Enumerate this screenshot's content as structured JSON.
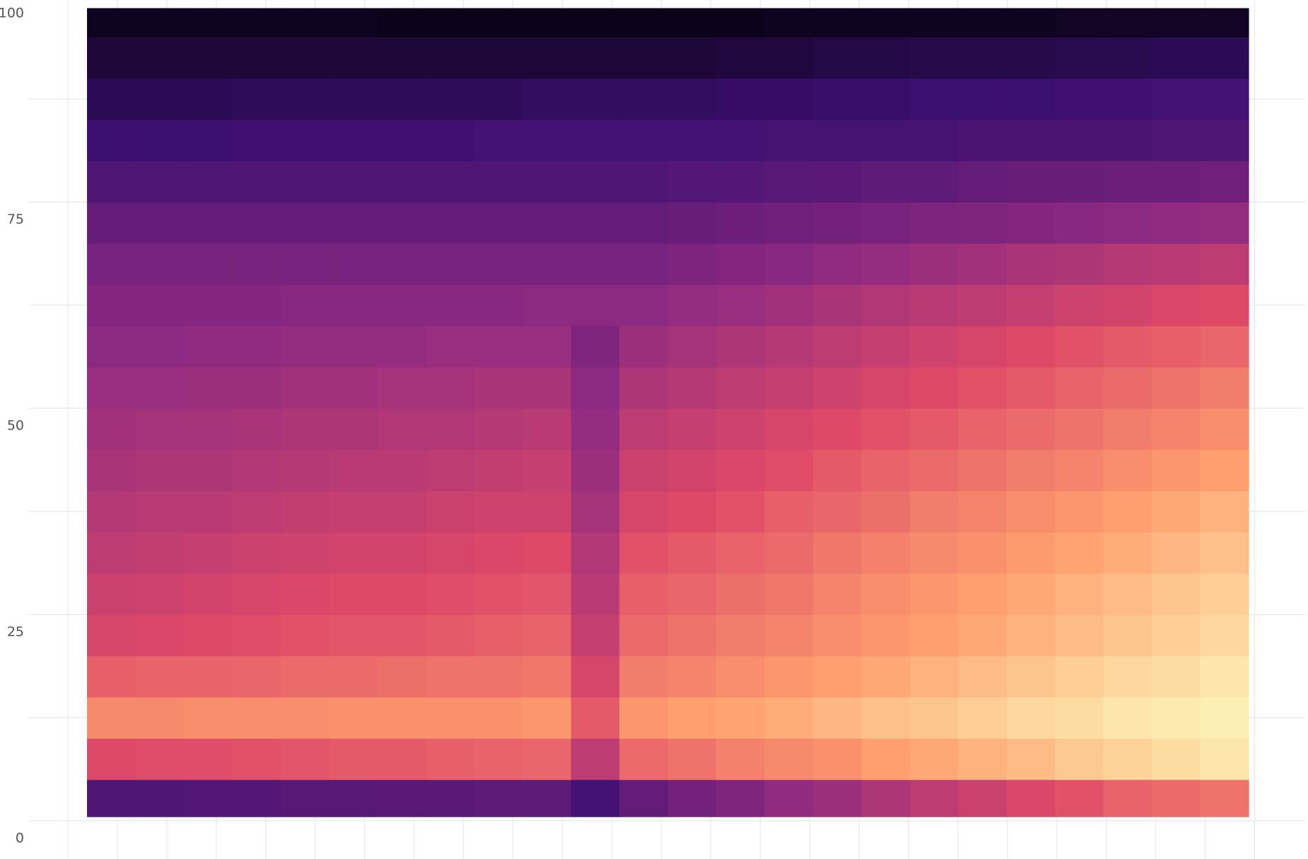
{
  "chart_data": {
    "type": "heatmap",
    "categories": [
      null,
      null,
      null,
      null,
      null,
      null,
      null,
      null,
      null,
      null,
      null,
      null,
      null,
      null,
      null,
      null,
      null,
      null,
      null,
      null,
      null,
      null,
      null,
      null
    ],
    "ybins": [
      0.5,
      5,
      10,
      15,
      20,
      25,
      30,
      35,
      40,
      45,
      50,
      55,
      60,
      65,
      70,
      75,
      80,
      85,
      90,
      95,
      98.5
    ],
    "ylim": [
      0,
      100
    ],
    "yticks": [
      0,
      25,
      50,
      75,
      100
    ],
    "zlim": [
      0,
      100
    ],
    "colorscale": [
      "#000004",
      "#3b0f70",
      "#8c2981",
      "#de4968",
      "#fe9f6d",
      "#fcfdbf"
    ],
    "grid": true,
    "values": [
      [
        25,
        25,
        26,
        26,
        27,
        27,
        28,
        28,
        29,
        29,
        22,
        30,
        34,
        37,
        41,
        44,
        48,
        52,
        55,
        59,
        62,
        66,
        68,
        70
      ],
      [
        60,
        61,
        61,
        62,
        63,
        64,
        64,
        65,
        66,
        67,
        52,
        68,
        70,
        73,
        75,
        77,
        80,
        82,
        84,
        86,
        89,
        91,
        93,
        95
      ],
      [
        75,
        75,
        76,
        76,
        76,
        77,
        77,
        77,
        77,
        78,
        64,
        78,
        80,
        81,
        83,
        85,
        87,
        88,
        90,
        92,
        93,
        95,
        96,
        97
      ],
      [
        65,
        66,
        66,
        67,
        68,
        68,
        69,
        70,
        70,
        71,
        58,
        72,
        74,
        76,
        78,
        80,
        82,
        84,
        86,
        88,
        90,
        92,
        93,
        95
      ],
      [
        58,
        59,
        60,
        61,
        62,
        63,
        63,
        64,
        65,
        66,
        54,
        68,
        70,
        72,
        74,
        76,
        78,
        80,
        82,
        84,
        86,
        88,
        90,
        92
      ],
      [
        55,
        56,
        57,
        58,
        59,
        60,
        60,
        61,
        62,
        63,
        51,
        65,
        67,
        69,
        71,
        74,
        76,
        78,
        80,
        82,
        84,
        86,
        88,
        90
      ],
      [
        52,
        53,
        54,
        55,
        56,
        57,
        57,
        58,
        59,
        60,
        49,
        62,
        64,
        66,
        68,
        71,
        73,
        75,
        77,
        79,
        81,
        83,
        85,
        87
      ],
      [
        50,
        51,
        51,
        52,
        53,
        54,
        54,
        55,
        56,
        56,
        46,
        58,
        60,
        62,
        65,
        67,
        69,
        72,
        74,
        76,
        78,
        80,
        82,
        84
      ],
      [
        47,
        48,
        48,
        49,
        50,
        51,
        51,
        52,
        53,
        54,
        44,
        55,
        57,
        59,
        61,
        64,
        66,
        68,
        70,
        72,
        74,
        76,
        78,
        80
      ],
      [
        45,
        46,
        46,
        47,
        48,
        48,
        49,
        49,
        50,
        51,
        42,
        52,
        54,
        56,
        58,
        60,
        62,
        64,
        66,
        68,
        70,
        72,
        74,
        76
      ],
      [
        43,
        43,
        44,
        44,
        45,
        45,
        46,
        46,
        47,
        47,
        40,
        48,
        50,
        52,
        54,
        56,
        58,
        60,
        62,
        64,
        66,
        68,
        70,
        72
      ],
      [
        40,
        40,
        41,
        41,
        42,
        42,
        42,
        43,
        43,
        43,
        37,
        44,
        46,
        48,
        50,
        52,
        54,
        56,
        58,
        60,
        62,
        64,
        65,
        67
      ],
      [
        38,
        38,
        38,
        38,
        39,
        39,
        39,
        39,
        39,
        40,
        40,
        40,
        42,
        43,
        45,
        47,
        49,
        51,
        52,
        54,
        56,
        57,
        59,
        60
      ],
      [
        35,
        35,
        35,
        35,
        35,
        35,
        35,
        35,
        35,
        35,
        35,
        35,
        36,
        38,
        39,
        41,
        42,
        44,
        45,
        47,
        48,
        50,
        51,
        52
      ],
      [
        30,
        30,
        30,
        30,
        30,
        30,
        30,
        30,
        30,
        30,
        30,
        30,
        31,
        32,
        33,
        34,
        35,
        36,
        37,
        38,
        39,
        40,
        41,
        42
      ],
      [
        25,
        25,
        25,
        25,
        25,
        25,
        25,
        25,
        25,
        25,
        25,
        25,
        26,
        26,
        27,
        28,
        29,
        29,
        30,
        31,
        31,
        32,
        32,
        33
      ],
      [
        20,
        20,
        20,
        21,
        21,
        21,
        21,
        21,
        22,
        22,
        22,
        22,
        22,
        22,
        23,
        23,
        23,
        23,
        24,
        24,
        24,
        24,
        25,
        25
      ],
      [
        15,
        15,
        15,
        16,
        16,
        16,
        16,
        16,
        16,
        17,
        17,
        17,
        17,
        18,
        18,
        19,
        19,
        20,
        20,
        20,
        21,
        21,
        22,
        22
      ],
      [
        10,
        10,
        10,
        10,
        10,
        10,
        10,
        10,
        10,
        10,
        10,
        10,
        10,
        11,
        11,
        12,
        12,
        13,
        13,
        13,
        14,
        14,
        15,
        15
      ],
      [
        5,
        5,
        5,
        5,
        5,
        5,
        4,
        4,
        4,
        4,
        4,
        4,
        4,
        4,
        5,
        5,
        5,
        5,
        5,
        5,
        6,
        6,
        6,
        6
      ]
    ]
  }
}
